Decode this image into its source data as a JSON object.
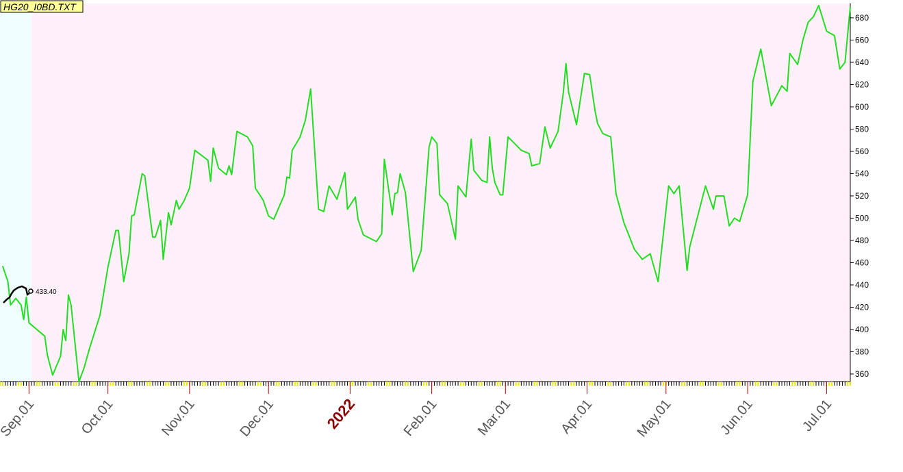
{
  "chart_data": {
    "type": "line",
    "title": "HG20_I0BD.TXT",
    "annotation": "433.40",
    "xlim": [
      "2021-08-21",
      "2022-07-10"
    ],
    "xticks": [
      {
        "value": "2021-09-01",
        "label": "Sep.01"
      },
      {
        "value": "2021-10-01",
        "label": "Oct.01"
      },
      {
        "value": "2021-11-01",
        "label": "Nov.01"
      },
      {
        "value": "2021-12-01",
        "label": "Dec.01"
      },
      {
        "value": "2022-01-01",
        "label": "2022"
      },
      {
        "value": "2022-02-01",
        "label": "Feb.01"
      },
      {
        "value": "2022-03-01",
        "label": "Mar.01"
      },
      {
        "value": "2022-04-01",
        "label": "Apr.01"
      },
      {
        "value": "2022-05-01",
        "label": "May.01"
      },
      {
        "value": "2022-06-01",
        "label": "Jun.01"
      },
      {
        "value": "2022-07-01",
        "label": "Jul.01"
      }
    ],
    "ylim": [
      353.2,
      692.9
    ],
    "yticks": [
      360,
      380,
      400,
      420,
      440,
      460,
      480,
      500,
      520,
      540,
      560,
      580,
      600,
      620,
      640,
      660,
      680
    ],
    "x": [
      "2021-08-22",
      "2021-08-24",
      "2021-08-25",
      "2021-08-27",
      "2021-08-29",
      "2021-08-30",
      "2021-08-31",
      "2021-09-01",
      "2021-09-04",
      "2021-09-07",
      "2021-09-08",
      "2021-09-10",
      "2021-09-13",
      "2021-09-14",
      "2021-09-15",
      "2021-09-16",
      "2021-09-17",
      "2021-09-20",
      "2021-09-22",
      "2021-09-24",
      "2021-09-28",
      "2021-10-01",
      "2021-10-04",
      "2021-10-05",
      "2021-10-07",
      "2021-10-09",
      "2021-10-10",
      "2021-10-11",
      "2021-10-14",
      "2021-10-15",
      "2021-10-18",
      "2021-10-19",
      "2021-10-21",
      "2021-10-22",
      "2021-10-24",
      "2021-10-25",
      "2021-10-27",
      "2021-10-28",
      "2021-10-30",
      "2021-11-01",
      "2021-11-03",
      "2021-11-08",
      "2021-11-09",
      "2021-11-10",
      "2021-11-12",
      "2021-11-15",
      "2021-11-16",
      "2021-11-17",
      "2021-11-19",
      "2021-11-23",
      "2021-11-25",
      "2021-11-26",
      "2021-11-29",
      "2021-12-01",
      "2021-12-03",
      "2021-12-07",
      "2021-12-08",
      "2021-12-09",
      "2021-12-10",
      "2021-12-13",
      "2021-12-15",
      "2021-12-17",
      "2021-12-20",
      "2021-12-22",
      "2021-12-24",
      "2021-12-27",
      "2021-12-30",
      "2021-12-31",
      "2022-01-03",
      "2022-01-04",
      "2022-01-06",
      "2022-01-11",
      "2022-01-13",
      "2022-01-14",
      "2022-01-17",
      "2022-01-18",
      "2022-01-19",
      "2022-01-20",
      "2022-01-22",
      "2022-01-25",
      "2022-01-28",
      "2022-01-31",
      "2022-02-01",
      "2022-02-03",
      "2022-02-04",
      "2022-02-07",
      "2022-02-10",
      "2022-02-11",
      "2022-02-14",
      "2022-02-16",
      "2022-02-17",
      "2022-02-20",
      "2022-02-22",
      "2022-02-23",
      "2022-02-24",
      "2022-02-25",
      "2022-02-27",
      "2022-02-28",
      "2022-03-02",
      "2022-03-07",
      "2022-03-10",
      "2022-03-11",
      "2022-03-14",
      "2022-03-16",
      "2022-03-18",
      "2022-03-21",
      "2022-03-23",
      "2022-03-24",
      "2022-03-25",
      "2022-03-28",
      "2022-03-31",
      "2022-04-02",
      "2022-04-04",
      "2022-04-05",
      "2022-04-07",
      "2022-04-10",
      "2022-04-12",
      "2022-04-15",
      "2022-04-19",
      "2022-04-22",
      "2022-04-25",
      "2022-04-28",
      "2022-05-02",
      "2022-05-04",
      "2022-05-06",
      "2022-05-09",
      "2022-05-10",
      "2022-05-16",
      "2022-05-19",
      "2022-05-20",
      "2022-05-23",
      "2022-05-25",
      "2022-05-27",
      "2022-05-29",
      "2022-06-01",
      "2022-06-03",
      "2022-06-06",
      "2022-06-10",
      "2022-06-14",
      "2022-06-16",
      "2022-06-17",
      "2022-06-20",
      "2022-06-22",
      "2022-06-24",
      "2022-06-26",
      "2022-06-28",
      "2022-07-01",
      "2022-07-04",
      "2022-07-06",
      "2022-07-08",
      "2022-07-10"
    ],
    "series": [
      {
        "color": "#22dd22",
        "values": [
          457,
          443,
          422,
          428,
          422,
          409,
          429,
          406,
          400,
          394,
          377,
          359,
          376,
          400,
          390,
          431,
          422,
          353,
          366,
          383,
          413,
          456,
          489,
          489,
          443,
          468,
          502,
          503,
          540,
          538,
          483,
          483,
          498,
          463,
          505,
          494,
          516,
          508,
          516,
          527,
          561,
          552,
          533,
          563,
          545,
          539,
          547,
          539,
          578,
          573,
          565,
          527,
          516,
          502,
          499,
          521,
          537,
          536,
          561,
          573,
          588,
          616,
          508,
          506,
          529,
          517,
          541,
          508,
          519,
          499,
          485,
          479,
          486,
          553,
          503,
          522,
          523,
          540,
          523,
          452,
          471,
          564,
          573,
          567,
          521,
          513,
          481,
          529,
          519,
          571,
          543,
          534,
          532,
          573,
          545,
          532,
          521,
          521,
          573,
          561,
          558,
          547,
          549,
          582,
          563,
          578,
          613,
          639,
          613,
          584,
          630,
          629,
          597,
          585,
          576,
          573,
          522,
          496,
          472,
          463,
          468,
          443,
          529,
          522,
          529,
          453,
          474,
          529,
          508,
          520,
          520,
          493,
          500,
          497,
          521,
          623,
          652,
          601,
          619,
          614,
          648,
          638,
          660,
          676,
          681,
          691,
          668,
          664,
          634,
          640,
          690
        ]
      }
    ]
  }
}
